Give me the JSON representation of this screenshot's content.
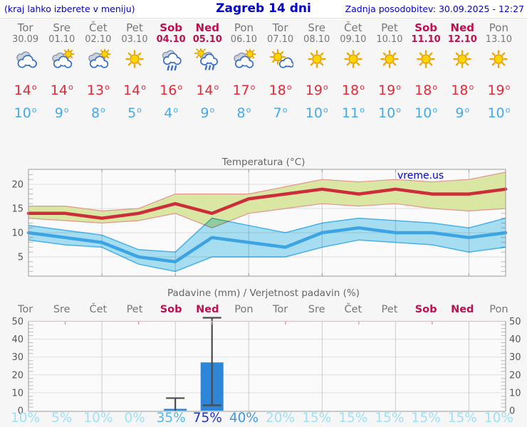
{
  "header": {
    "left": "(kraj lahko izberete v meniju)",
    "title": "Zagreb 14 dni",
    "right": "Zadnja posodobitev: 30.09.2025 - 12:27"
  },
  "days": [
    {
      "name": "Tor",
      "date": "30.09",
      "weekend": false,
      "icon": "cloudy",
      "tmax": 14,
      "tmin": 10,
      "prob": 10,
      "prob_level": "low"
    },
    {
      "name": "Sre",
      "date": "01.10",
      "weekend": false,
      "icon": "partly-cloudy",
      "tmax": 14,
      "tmin": 9,
      "prob": 5,
      "prob_level": "low"
    },
    {
      "name": "Čet",
      "date": "02.10",
      "weekend": false,
      "icon": "partly-cloudy",
      "tmax": 13,
      "tmin": 8,
      "prob": 10,
      "prob_level": "low"
    },
    {
      "name": "Pet",
      "date": "03.10",
      "weekend": false,
      "icon": "sunny",
      "tmax": 14,
      "tmin": 5,
      "prob": 0,
      "prob_level": "low"
    },
    {
      "name": "Sob",
      "date": "04.10",
      "weekend": true,
      "icon": "rain",
      "tmax": 16,
      "tmin": 4,
      "prob": 35,
      "prob_level": "mid"
    },
    {
      "name": "Ned",
      "date": "05.10",
      "weekend": true,
      "icon": "sun-rain",
      "tmax": 14,
      "tmin": 9,
      "prob": 75,
      "prob_level": "high"
    },
    {
      "name": "Pon",
      "date": "06.10",
      "weekend": false,
      "icon": "partly-cloudy",
      "tmax": 17,
      "tmin": 8,
      "prob": 40,
      "prob_level": "mid2"
    },
    {
      "name": "Tor",
      "date": "07.10",
      "weekend": false,
      "icon": "mostly-sunny",
      "tmax": 18,
      "tmin": 7,
      "prob": 20,
      "prob_level": "low"
    },
    {
      "name": "Sre",
      "date": "08.10",
      "weekend": false,
      "icon": "sunny",
      "tmax": 19,
      "tmin": 10,
      "prob": 15,
      "prob_level": "low"
    },
    {
      "name": "Čet",
      "date": "09.10",
      "weekend": false,
      "icon": "sunny",
      "tmax": 18,
      "tmin": 11,
      "prob": 15,
      "prob_level": "low"
    },
    {
      "name": "Pet",
      "date": "10.10",
      "weekend": false,
      "icon": "sunny",
      "tmax": 19,
      "tmin": 10,
      "prob": 15,
      "prob_level": "low"
    },
    {
      "name": "Sob",
      "date": "11.10",
      "weekend": true,
      "icon": "sunny",
      "tmax": 18,
      "tmin": 10,
      "prob": 15,
      "prob_level": "low"
    },
    {
      "name": "Ned",
      "date": "12.10",
      "weekend": true,
      "icon": "sunny",
      "tmax": 18,
      "tmin": 9,
      "prob": 15,
      "prob_level": "low"
    },
    {
      "name": "Pon",
      "date": "13.10",
      "weekend": false,
      "icon": "sunny",
      "tmax": 19,
      "tmin": 10,
      "prob": 10,
      "prob_level": "low"
    }
  ],
  "chart_data": [
    {
      "type": "line",
      "title": "Temperatura (°C)",
      "watermark": "vreme.us",
      "x": [
        "Tor 30.09",
        "Sre 01.10",
        "Čet 02.10",
        "Pet 03.10",
        "Sob 04.10",
        "Ned 05.10",
        "Pon 06.10",
        "Tor 07.10",
        "Sre 08.10",
        "Čet 09.10",
        "Pet 10.10",
        "Sob 11.10",
        "Ned 12.10",
        "Pon 13.10"
      ],
      "ylim": [
        1,
        23
      ],
      "yticks": [
        5,
        10,
        15,
        20
      ],
      "grid": true,
      "series": [
        {
          "name": "max",
          "values": [
            14,
            14,
            13,
            14,
            16,
            14,
            17,
            18,
            19,
            18,
            19,
            18,
            18,
            19
          ]
        },
        {
          "name": "max_upper",
          "values": [
            15.5,
            15.5,
            14.5,
            15,
            18,
            18,
            18,
            19.5,
            21,
            20.5,
            21,
            20.5,
            21,
            22.5
          ]
        },
        {
          "name": "max_lower",
          "values": [
            13,
            12.5,
            12,
            12.5,
            14,
            11,
            14,
            15,
            16,
            15.5,
            16,
            15,
            14.5,
            15
          ]
        },
        {
          "name": "min",
          "values": [
            10,
            9,
            8,
            5,
            4,
            9,
            8,
            7,
            10,
            11,
            10,
            10,
            9,
            10
          ]
        },
        {
          "name": "min_upper",
          "values": [
            11.5,
            10.5,
            9.5,
            6.5,
            6,
            13,
            11.5,
            10,
            12,
            13,
            12.5,
            12,
            11,
            13
          ]
        },
        {
          "name": "min_lower",
          "values": [
            8.5,
            7.5,
            7,
            3.5,
            2,
            5,
            5,
            5,
            7,
            8.5,
            8,
            7.5,
            6,
            7
          ]
        }
      ]
    },
    {
      "type": "bar",
      "title": "Padavine (mm) / Verjetnost padavin (%)",
      "categories": [
        "Tor",
        "Sre",
        "Čet",
        "Pet",
        "Sob",
        "Ned",
        "Pon",
        "Tor",
        "Sre",
        "Čet",
        "Pet",
        "Sob",
        "Ned",
        "Pon"
      ],
      "values_mm": [
        0,
        0,
        0,
        0,
        1,
        27,
        0,
        0,
        0,
        0,
        0,
        0,
        0,
        0
      ],
      "whiskers": [
        {
          "day": 4,
          "min": 0,
          "max": 7
        },
        {
          "day": 5,
          "min": 3,
          "max": 52
        }
      ],
      "probability_pct": [
        10,
        5,
        10,
        0,
        35,
        75,
        40,
        20,
        15,
        15,
        15,
        15,
        15,
        10
      ],
      "ylim": [
        0,
        52
      ],
      "yticks": [
        0,
        10,
        20,
        30,
        40,
        50
      ],
      "grid": true
    }
  ],
  "colors": {
    "header_blue": "#0000cc",
    "weekday": "#777777",
    "weekend": "#bb1150",
    "tmax": "#e12b38",
    "tmin": "#45aae9",
    "temp_line_max": "#cd2d3a",
    "temp_band_max": "#d9e7a3",
    "temp_band_max_edge": "#e4938f",
    "temp_line_min": "#3da4e4",
    "temp_band_min": "#a9e2f5",
    "temp_band_min_edge": "#49b5ec",
    "bar": "#2e86d8",
    "whisker": "#4a4a4a",
    "prob_low": "#9fe0f6",
    "prob_mid": "#55b7ee",
    "prob_mid2": "#3e98e2",
    "prob_high": "#1d33bb",
    "watermark": "#0000dd"
  }
}
